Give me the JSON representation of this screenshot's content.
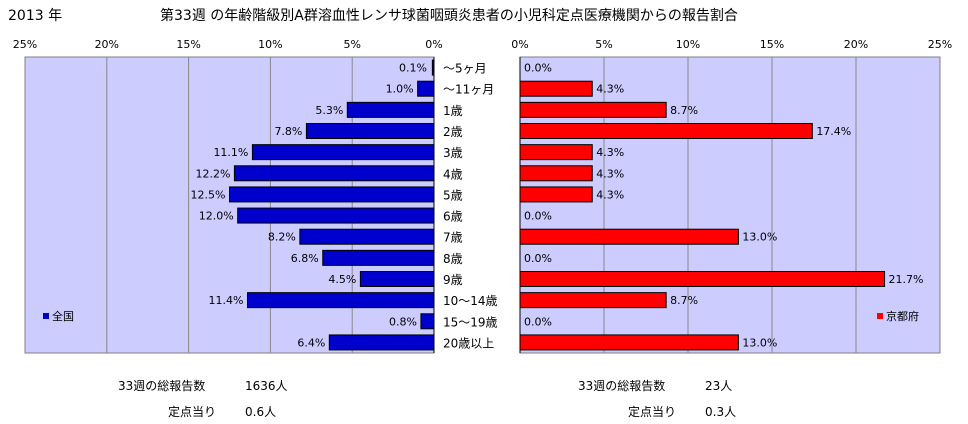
{
  "year_label": "2013 年",
  "title": "第33週 の年齢階級別A群溶血性レンサ球菌咽頭炎患者の小児科定点医療機関からの報告割合",
  "chart_data": {
    "type": "bar",
    "orientation": "horizontal",
    "categories": [
      "～5ヶ月",
      "～11ヶ月",
      "1歳",
      "2歳",
      "3歳",
      "4歳",
      "5歳",
      "6歳",
      "7歳",
      "8歳",
      "9歳",
      "10～14歳",
      "15～19歳",
      "20歳以上"
    ],
    "xlim": [
      0,
      25
    ],
    "x_unit": "%",
    "ticks": [
      "0%",
      "5%",
      "10%",
      "15%",
      "20%",
      "25%"
    ],
    "grid": true,
    "series": [
      {
        "name": "全国",
        "color": "#0000cc",
        "side": "left",
        "values": [
          0.1,
          1.0,
          5.3,
          7.8,
          11.1,
          12.2,
          12.5,
          12.0,
          8.2,
          6.8,
          4.5,
          11.4,
          0.8,
          6.4
        ],
        "labels": [
          "0.1%",
          "1.0%",
          "5.3%",
          "7.8%",
          "11.1%",
          "12.2%",
          "12.5%",
          "12.0%",
          "8.2%",
          "6.8%",
          "4.5%",
          "11.4%",
          "0.8%",
          "6.4%"
        ]
      },
      {
        "name": "京都府",
        "color": "#ff0000",
        "side": "right",
        "values": [
          0.0,
          4.3,
          8.7,
          17.4,
          4.3,
          4.3,
          4.3,
          0.0,
          13.0,
          0.0,
          21.7,
          8.7,
          0.0,
          13.0
        ],
        "labels": [
          "0.0%",
          "4.3%",
          "8.7%",
          "17.4%",
          "4.3%",
          "4.3%",
          "4.3%",
          "0.0%",
          "13.0%",
          "0.0%",
          "21.7%",
          "8.7%",
          "0.0%",
          "13.0%"
        ]
      }
    ]
  },
  "summary": {
    "left": {
      "total_label": "33週の総報告数",
      "total_value": "1636人",
      "per_label": "定点当り",
      "per_value": "0.6人"
    },
    "right": {
      "total_label": "33週の総報告数",
      "total_value": "23人",
      "per_label": "定点当り",
      "per_value": "0.3人"
    }
  }
}
